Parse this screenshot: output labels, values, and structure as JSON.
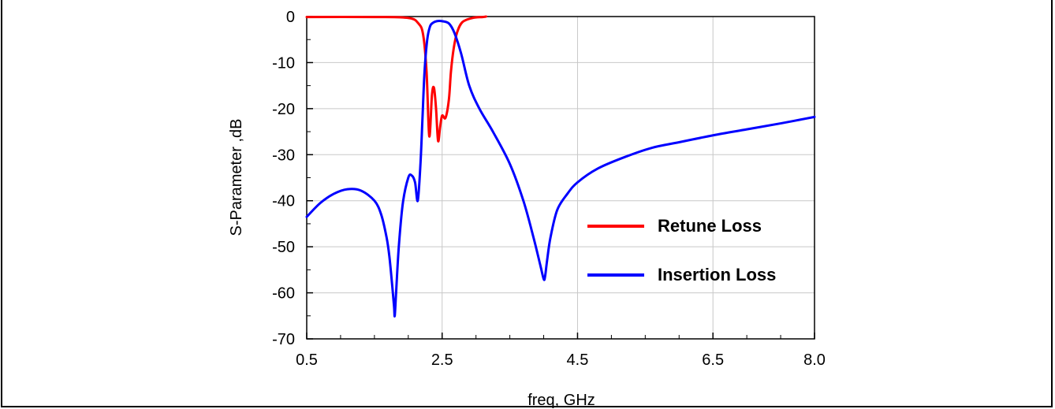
{
  "chart_data": {
    "type": "line",
    "xlabel": "freq, GHz",
    "ylabel": "S-Parameter ,dB",
    "xlim": [
      0.5,
      8.0
    ],
    "ylim": [
      -70,
      0
    ],
    "x_ticks": [
      0.5,
      2.5,
      4.5,
      6.5,
      8.0
    ],
    "x_tick_labels": [
      "0.5",
      "2.5",
      "4.5",
      "6.5",
      "8.0"
    ],
    "y_ticks": [
      0,
      -10,
      -20,
      -30,
      -40,
      -50,
      -60,
      -70
    ],
    "y_tick_labels": [
      "0",
      "-10",
      "-20",
      "-30",
      "-40",
      "-50",
      "-60",
      "-70"
    ],
    "grid": true,
    "legend_position": "lower-right",
    "series": [
      {
        "name": "Retune Loss",
        "color": "#ff0000",
        "x": [
          0.5,
          1.5,
          2.0,
          2.15,
          2.22,
          2.27,
          2.31,
          2.35,
          2.38,
          2.41,
          2.44,
          2.47,
          2.5,
          2.55,
          2.6,
          2.63,
          2.67,
          2.72,
          2.8,
          2.95,
          3.1,
          3.15
        ],
        "y": [
          -0.1,
          -0.1,
          -0.3,
          -1.5,
          -4,
          -12,
          -26,
          -17,
          -15.5,
          -20,
          -27,
          -24,
          -21.5,
          -22,
          -18,
          -12,
          -7,
          -3.5,
          -1.2,
          -0.3,
          -0.1,
          0
        ]
      },
      {
        "name": "Insertion Loss",
        "color": "#0000ff",
        "x": [
          0.5,
          0.7,
          0.9,
          1.1,
          1.3,
          1.5,
          1.6,
          1.68,
          1.72,
          1.76,
          1.79,
          1.8,
          1.82,
          1.86,
          1.92,
          2.0,
          2.05,
          2.1,
          2.14,
          2.18,
          2.21,
          2.24,
          2.28,
          2.32,
          2.36,
          2.42,
          2.5,
          2.6,
          2.68,
          2.78,
          2.9,
          3.05,
          3.25,
          3.5,
          3.7,
          3.85,
          3.95,
          4.0,
          4.02,
          4.05,
          4.1,
          4.2,
          4.35,
          4.5,
          4.8,
          5.2,
          5.6,
          6.0,
          6.5,
          7.0,
          7.5,
          8.0
        ],
        "y": [
          -43.5,
          -40.5,
          -38.5,
          -37.5,
          -37.8,
          -40,
          -43,
          -48,
          -52,
          -58,
          -63,
          -65,
          -60,
          -50,
          -40.5,
          -35,
          -34.5,
          -36,
          -40,
          -32,
          -22,
          -12,
          -5,
          -2.2,
          -1.4,
          -1.0,
          -1.0,
          -1.5,
          -3.5,
          -8,
          -15,
          -20,
          -25,
          -32,
          -40,
          -48,
          -54,
          -57,
          -56.5,
          -53,
          -48,
          -42,
          -38.5,
          -36,
          -33,
          -30.5,
          -28.5,
          -27.3,
          -25.8,
          -24.5,
          -23.2,
          -21.8
        ]
      }
    ]
  }
}
